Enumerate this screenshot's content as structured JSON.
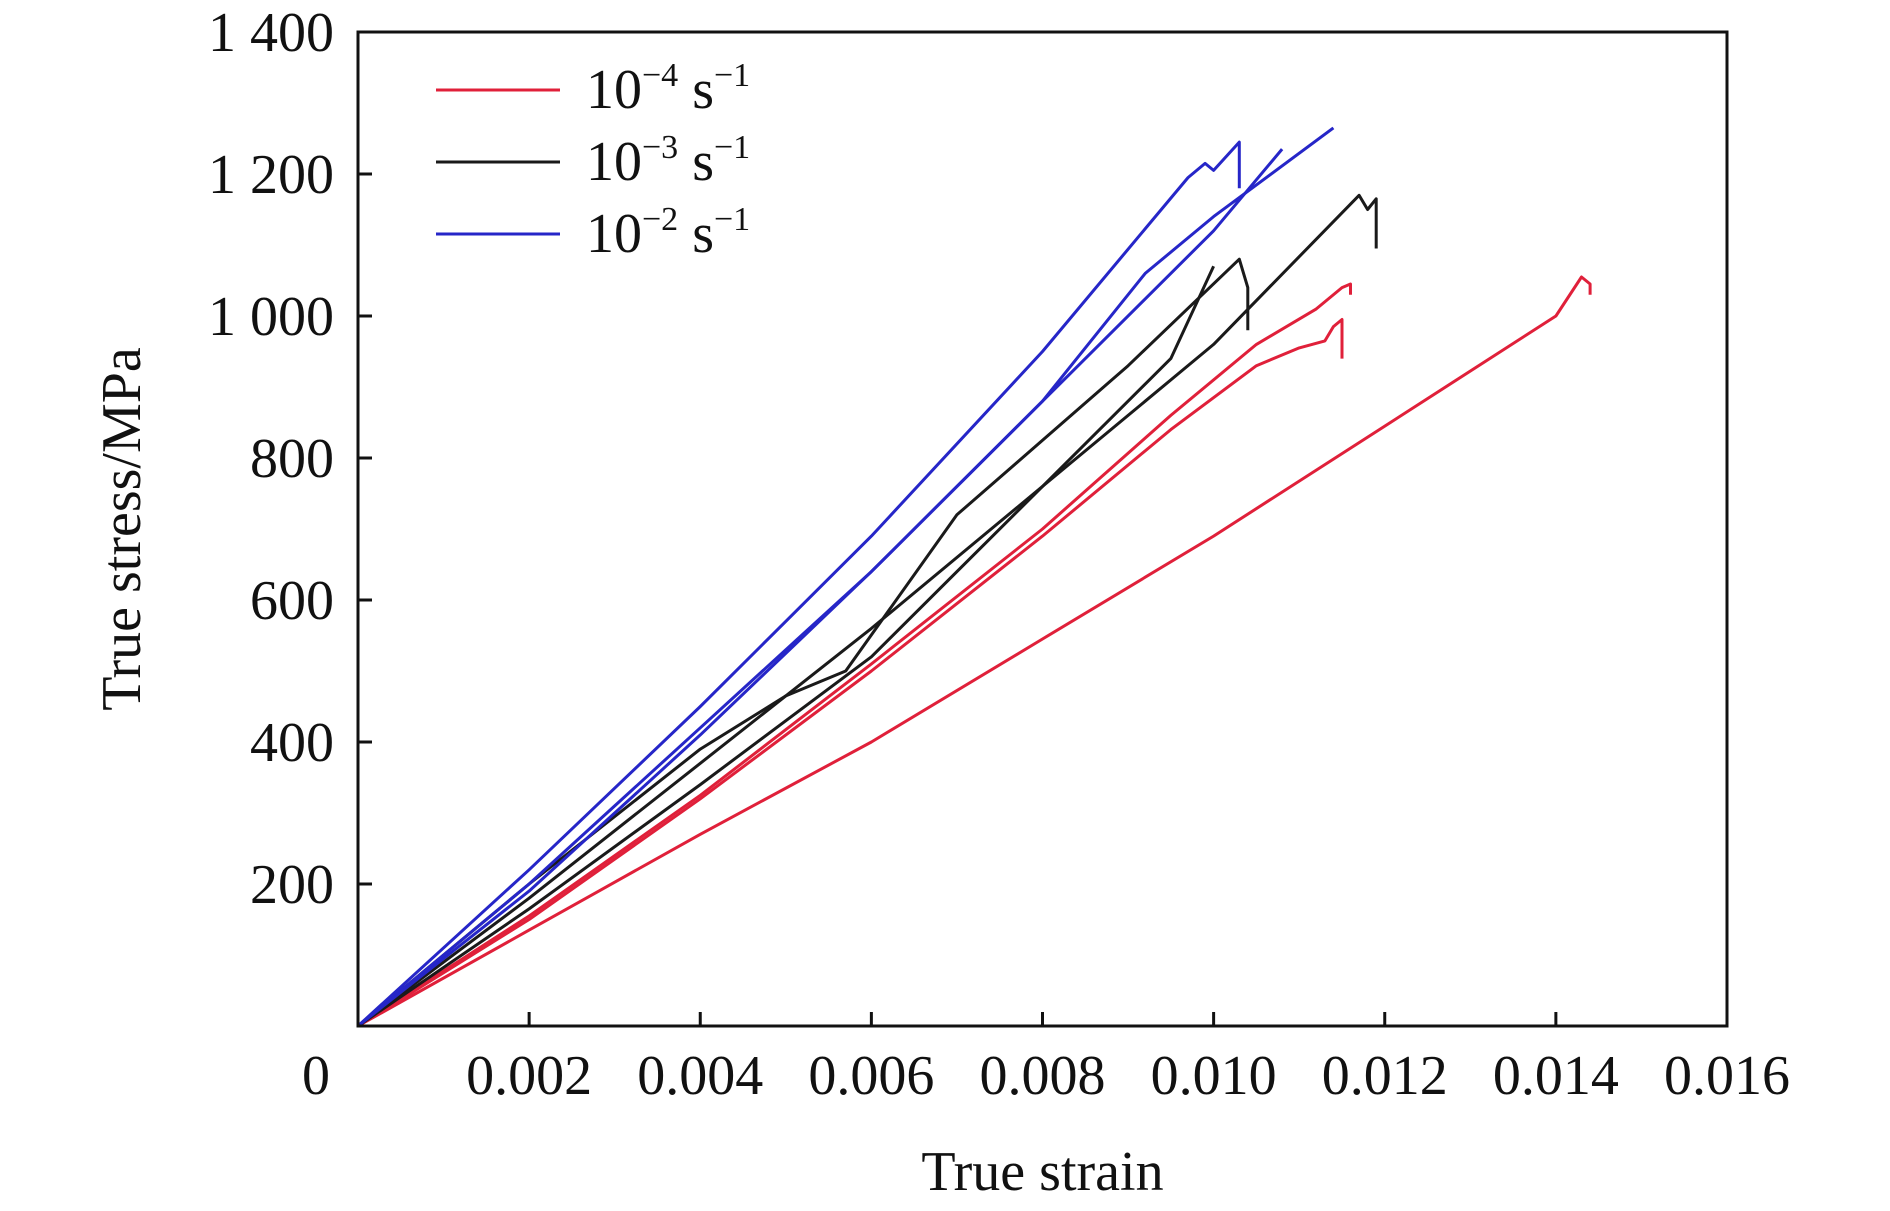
{
  "chart_data": {
    "type": "line",
    "xlabel": "True strain",
    "ylabel": "True stress/MPa",
    "xlim": [
      0,
      0.016
    ],
    "ylim": [
      0,
      1400
    ],
    "x_ticks": [
      0,
      0.002,
      0.004,
      0.006,
      0.008,
      0.01,
      0.012,
      0.014,
      0.016
    ],
    "x_tick_labels": [
      "0",
      "0.002",
      "0.004",
      "0.006",
      "0.008",
      "0.010",
      "0.012",
      "0.014",
      "0.016"
    ],
    "y_ticks": [
      200,
      400,
      600,
      800,
      1000,
      1200,
      1400
    ],
    "y_tick_labels": [
      "200",
      "400",
      "600",
      "800",
      "1 000",
      "1 200",
      "1 400"
    ],
    "grid": false,
    "legend_position": "top-left",
    "legend": [
      {
        "base": "10",
        "exp": "−4",
        "unit": "s",
        "unit_exp": "−1",
        "color": "#e0203a"
      },
      {
        "base": "10",
        "exp": "−3",
        "unit": "s",
        "unit_exp": "−1",
        "color": "#1a1a1a"
      },
      {
        "base": "10",
        "exp": "−2",
        "unit": "s",
        "unit_exp": "−1",
        "color": "#2626c8"
      }
    ],
    "series": [
      {
        "group": 0,
        "color": "#e0203a",
        "points": [
          [
            0,
            0
          ],
          [
            0.002,
            150
          ],
          [
            0.004,
            320
          ],
          [
            0.006,
            500
          ],
          [
            0.008,
            690
          ],
          [
            0.0095,
            840
          ],
          [
            0.0105,
            930
          ],
          [
            0.011,
            955
          ],
          [
            0.0113,
            965
          ],
          [
            0.0114,
            985
          ],
          [
            0.0115,
            995
          ],
          [
            0.0115,
            940
          ]
        ]
      },
      {
        "group": 0,
        "color": "#e0203a",
        "points": [
          [
            0,
            0
          ],
          [
            0.002,
            155
          ],
          [
            0.004,
            325
          ],
          [
            0.006,
            510
          ],
          [
            0.008,
            700
          ],
          [
            0.0095,
            860
          ],
          [
            0.0105,
            960
          ],
          [
            0.0112,
            1010
          ],
          [
            0.0115,
            1040
          ],
          [
            0.0116,
            1045
          ],
          [
            0.0116,
            1030
          ]
        ]
      },
      {
        "group": 0,
        "color": "#e0203a",
        "points": [
          [
            0,
            0
          ],
          [
            0.002,
            135
          ],
          [
            0.004,
            270
          ],
          [
            0.006,
            400
          ],
          [
            0.008,
            545
          ],
          [
            0.01,
            690
          ],
          [
            0.012,
            845
          ],
          [
            0.014,
            1000
          ],
          [
            0.0143,
            1055
          ],
          [
            0.0144,
            1045
          ],
          [
            0.0144,
            1030
          ]
        ]
      },
      {
        "group": 1,
        "color": "#1a1a1a",
        "points": [
          [
            0,
            0
          ],
          [
            0.002,
            180
          ],
          [
            0.004,
            370
          ],
          [
            0.006,
            560
          ],
          [
            0.008,
            760
          ],
          [
            0.0095,
            940
          ],
          [
            0.01,
            1070
          ]
        ]
      },
      {
        "group": 1,
        "color": "#1a1a1a",
        "points": [
          [
            0,
            0
          ],
          [
            0.002,
            200
          ],
          [
            0.004,
            390
          ],
          [
            0.005,
            465
          ],
          [
            0.0057,
            500
          ],
          [
            0.007,
            720
          ],
          [
            0.009,
            930
          ],
          [
            0.0103,
            1080
          ],
          [
            0.0104,
            1040
          ],
          [
            0.0104,
            980
          ]
        ]
      },
      {
        "group": 1,
        "color": "#1a1a1a",
        "points": [
          [
            0,
            0
          ],
          [
            0.002,
            165
          ],
          [
            0.004,
            340
          ],
          [
            0.006,
            520
          ],
          [
            0.008,
            760
          ],
          [
            0.01,
            960
          ],
          [
            0.0117,
            1170
          ],
          [
            0.0118,
            1150
          ],
          [
            0.0119,
            1165
          ],
          [
            0.0119,
            1095
          ]
        ]
      },
      {
        "group": 2,
        "color": "#2626c8",
        "points": [
          [
            0,
            0
          ],
          [
            0.002,
            220
          ],
          [
            0.004,
            450
          ],
          [
            0.006,
            690
          ],
          [
            0.008,
            950
          ],
          [
            0.0097,
            1195
          ],
          [
            0.0099,
            1215
          ],
          [
            0.01,
            1205
          ],
          [
            0.0103,
            1245
          ],
          [
            0.0103,
            1180
          ]
        ]
      },
      {
        "group": 2,
        "color": "#2626c8",
        "points": [
          [
            0,
            0
          ],
          [
            0.002,
            200
          ],
          [
            0.004,
            420
          ],
          [
            0.006,
            640
          ],
          [
            0.008,
            880
          ],
          [
            0.01,
            1120
          ],
          [
            0.0108,
            1235
          ]
        ]
      },
      {
        "group": 2,
        "color": "#2626c8",
        "points": [
          [
            0,
            0
          ],
          [
            0.002,
            190
          ],
          [
            0.004,
            410
          ],
          [
            0.006,
            640
          ],
          [
            0.008,
            880
          ],
          [
            0.0092,
            1060
          ],
          [
            0.01,
            1140
          ],
          [
            0.0114,
            1265
          ]
        ]
      }
    ]
  }
}
